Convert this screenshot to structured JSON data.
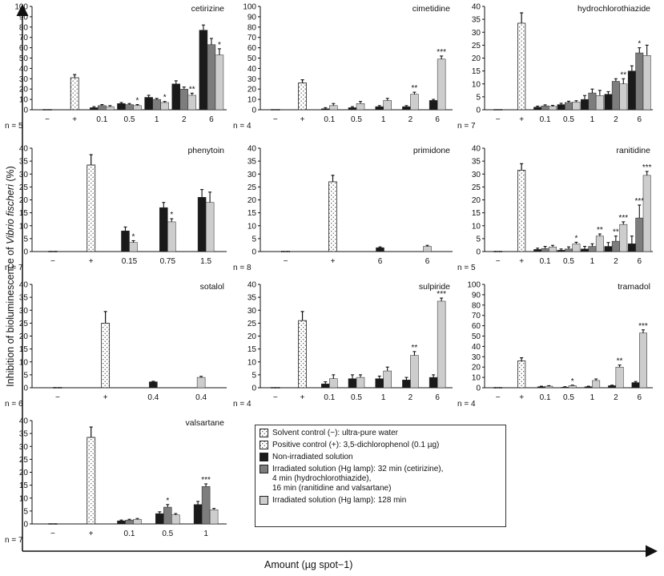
{
  "figure": {
    "y_axis_label_prefix": "Inhibition of bioluminescence of ",
    "y_axis_label_species": "Vibrio fischeri",
    "y_axis_label_suffix": " (%)",
    "x_axis_label": "Amount (µg spot−1)"
  },
  "legend": {
    "items": [
      {
        "key": "solvent",
        "label": "Solvent control (−): ultra-pure water"
      },
      {
        "key": "positive",
        "label": "Positive control (+): 3,5-dichlorophenol (0.1 µg)"
      },
      {
        "key": "non_irr",
        "label": "Non-irradiated solution"
      },
      {
        "key": "hg_short",
        "label": "Irradiated solution (Hg lamp): 32 min (cetirizine),\n4 min (hydrochlorothiazide),\n16 min (ranitidine and valsartane)"
      },
      {
        "key": "hg_128",
        "label": "Irradiated solution (Hg lamp): 128 min"
      }
    ]
  },
  "colors": {
    "non_irr": "#1a1a1a",
    "hg_short": "#7d7d7d",
    "hg_128": "#cdcdcd",
    "positive_fill": "#ffffff",
    "positive_dots": "#555555"
  },
  "chart_data": [
    {
      "type": "bar",
      "drug": "cetirizine",
      "n_label": "n = 5",
      "ylim": [
        0,
        100
      ],
      "yticks": [
        0,
        10,
        20,
        30,
        40,
        50,
        60,
        70,
        80,
        90,
        100
      ],
      "solvent": 0,
      "positive": 31,
      "positive_err": 3,
      "groups": [
        {
          "label": "0.1",
          "bars": [
            {
              "s": "non_irr",
              "v": 2,
              "e": 1
            },
            {
              "s": "hg_short",
              "v": 4,
              "e": 1
            },
            {
              "s": "hg_128",
              "v": 3,
              "e": 1
            }
          ]
        },
        {
          "label": "0.5",
          "bars": [
            {
              "s": "non_irr",
              "v": 6,
              "e": 1
            },
            {
              "s": "hg_short",
              "v": 5,
              "e": 1
            },
            {
              "s": "hg_128",
              "v": 4,
              "e": 1,
              "sig": "*"
            }
          ]
        },
        {
          "label": "1",
          "bars": [
            {
              "s": "non_irr",
              "v": 12,
              "e": 2
            },
            {
              "s": "hg_short",
              "v": 10,
              "e": 1
            },
            {
              "s": "hg_128",
              "v": 7,
              "e": 1,
              "sig": "*"
            }
          ]
        },
        {
          "label": "2",
          "bars": [
            {
              "s": "non_irr",
              "v": 25,
              "e": 3
            },
            {
              "s": "hg_short",
              "v": 20,
              "e": 2
            },
            {
              "s": "hg_128",
              "v": 14,
              "e": 2,
              "sig": "**"
            }
          ]
        },
        {
          "label": "6",
          "bars": [
            {
              "s": "non_irr",
              "v": 77,
              "e": 5
            },
            {
              "s": "hg_short",
              "v": 63,
              "e": 6
            },
            {
              "s": "hg_128",
              "v": 53,
              "e": 6,
              "sig": "*"
            }
          ]
        }
      ]
    },
    {
      "type": "bar",
      "drug": "cimetidine",
      "n_label": "n = 4",
      "ylim": [
        0,
        100
      ],
      "yticks": [
        0,
        10,
        20,
        30,
        40,
        50,
        60,
        70,
        80,
        90,
        100
      ],
      "solvent": 0,
      "positive": 26,
      "positive_err": 3,
      "groups": [
        {
          "label": "0.1",
          "bars": [
            {
              "s": "non_irr",
              "v": 1,
              "e": 1
            },
            {
              "s": "hg_128",
              "v": 4,
              "e": 2
            }
          ]
        },
        {
          "label": "0.5",
          "bars": [
            {
              "s": "non_irr",
              "v": 2,
              "e": 1
            },
            {
              "s": "hg_128",
              "v": 6,
              "e": 2
            }
          ]
        },
        {
          "label": "1",
          "bars": [
            {
              "s": "non_irr",
              "v": 3,
              "e": 1
            },
            {
              "s": "hg_128",
              "v": 9,
              "e": 2
            }
          ]
        },
        {
          "label": "2",
          "bars": [
            {
              "s": "non_irr",
              "v": 3,
              "e": 1
            },
            {
              "s": "hg_128",
              "v": 15,
              "e": 2,
              "sig": "**"
            }
          ]
        },
        {
          "label": "6",
          "bars": [
            {
              "s": "non_irr",
              "v": 9,
              "e": 1
            },
            {
              "s": "hg_128",
              "v": 49,
              "e": 3,
              "sig": "***"
            }
          ]
        }
      ]
    },
    {
      "type": "bar",
      "drug": "hydrochlorothiazide",
      "n_label": "n = 7",
      "ylim": [
        0,
        40
      ],
      "yticks": [
        0,
        5,
        10,
        15,
        20,
        25,
        30,
        35,
        40
      ],
      "solvent": 0,
      "positive": 33.5,
      "positive_err": 4,
      "groups": [
        {
          "label": "0.1",
          "bars": [
            {
              "s": "non_irr",
              "v": 1,
              "e": 0.4
            },
            {
              "s": "hg_short",
              "v": 1.5,
              "e": 0.4
            },
            {
              "s": "hg_128",
              "v": 1.3,
              "e": 0.4
            }
          ]
        },
        {
          "label": "0.5",
          "bars": [
            {
              "s": "non_irr",
              "v": 2,
              "e": 0.5
            },
            {
              "s": "hg_short",
              "v": 2.8,
              "e": 0.5
            },
            {
              "s": "hg_128",
              "v": 3,
              "e": 0.5
            }
          ]
        },
        {
          "label": "1",
          "bars": [
            {
              "s": "non_irr",
              "v": 4,
              "e": 1.5
            },
            {
              "s": "hg_short",
              "v": 6.5,
              "e": 1.5
            },
            {
              "s": "hg_128",
              "v": 5.5,
              "e": 2
            }
          ]
        },
        {
          "label": "2",
          "bars": [
            {
              "s": "non_irr",
              "v": 6,
              "e": 1
            },
            {
              "s": "hg_short",
              "v": 11,
              "e": 1
            },
            {
              "s": "hg_128",
              "v": 10,
              "e": 2,
              "sig": "**"
            }
          ]
        },
        {
          "label": "6",
          "bars": [
            {
              "s": "non_irr",
              "v": 15,
              "e": 2
            },
            {
              "s": "hg_short",
              "v": 22,
              "e": 2,
              "sig": "*"
            },
            {
              "s": "hg_128",
              "v": 21,
              "e": 4
            }
          ]
        }
      ]
    },
    {
      "type": "bar",
      "drug": "phenytoin",
      "n_label": "n = 7",
      "ylim": [
        0,
        40
      ],
      "yticks": [
        0,
        5,
        10,
        15,
        20,
        25,
        30,
        35,
        40
      ],
      "solvent": 0,
      "positive": 33.5,
      "positive_err": 4,
      "groups": [
        {
          "label": "0.15",
          "bars": [
            {
              "s": "non_irr",
              "v": 8,
              "e": 1.5
            },
            {
              "s": "hg_128",
              "v": 3.5,
              "e": 0.7,
              "sig": "*"
            }
          ]
        },
        {
          "label": "0.75",
          "bars": [
            {
              "s": "non_irr",
              "v": 17,
              "e": 2
            },
            {
              "s": "hg_128",
              "v": 11.5,
              "e": 1.2,
              "sig": "*"
            }
          ]
        },
        {
          "label": "1.5",
          "bars": [
            {
              "s": "non_irr",
              "v": 21,
              "e": 3
            },
            {
              "s": "hg_128",
              "v": 19,
              "e": 4
            }
          ]
        }
      ]
    },
    {
      "type": "bar",
      "drug": "primidone",
      "n_label": "n = 8",
      "ylim": [
        0,
        40
      ],
      "yticks": [
        0,
        5,
        10,
        15,
        20,
        25,
        30,
        35,
        40
      ],
      "solvent": 0,
      "positive": 27,
      "positive_err": 2.5,
      "groups": [
        {
          "label": "6",
          "bars": [
            {
              "s": "non_irr",
              "v": 1.5,
              "e": 0.3
            }
          ]
        },
        {
          "label": "6",
          "bars": [
            {
              "s": "hg_128",
              "v": 2,
              "e": 0.4
            }
          ]
        }
      ]
    },
    {
      "type": "bar",
      "drug": "ranitidine",
      "n_label": "n = 5",
      "ylim": [
        0,
        40
      ],
      "yticks": [
        0,
        5,
        10,
        15,
        20,
        25,
        30,
        35,
        40
      ],
      "solvent": 0,
      "positive": 31.5,
      "positive_err": 2.5,
      "groups": [
        {
          "label": "0.1",
          "bars": [
            {
              "s": "non_irr",
              "v": 0.8,
              "e": 0.5
            },
            {
              "s": "hg_short",
              "v": 1.2,
              "e": 0.8
            },
            {
              "s": "hg_128",
              "v": 1.8,
              "e": 0.6
            }
          ]
        },
        {
          "label": "0.5",
          "bars": [
            {
              "s": "non_irr",
              "v": 0.5,
              "e": 0.5
            },
            {
              "s": "hg_short",
              "v": 1,
              "e": 0.8
            },
            {
              "s": "hg_128",
              "v": 3,
              "e": 0.6,
              "sig": "*"
            }
          ]
        },
        {
          "label": "1",
          "bars": [
            {
              "s": "non_irr",
              "v": 1,
              "e": 1
            },
            {
              "s": "hg_short",
              "v": 2,
              "e": 1
            },
            {
              "s": "hg_128",
              "v": 6,
              "e": 0.8,
              "sig": "**"
            }
          ]
        },
        {
          "label": "2",
          "bars": [
            {
              "s": "non_irr",
              "v": 2,
              "e": 1.5
            },
            {
              "s": "hg_short",
              "v": 4,
              "e": 2,
              "sig": "**"
            },
            {
              "s": "hg_128",
              "v": 10.5,
              "e": 1,
              "sig": "***"
            }
          ]
        },
        {
          "label": "6",
          "bars": [
            {
              "s": "non_irr",
              "v": 3,
              "e": 3
            },
            {
              "s": "hg_short",
              "v": 13,
              "e": 5,
              "sig": "***"
            },
            {
              "s": "hg_128",
              "v": 29.5,
              "e": 1.5,
              "sig": "***"
            }
          ]
        }
      ]
    },
    {
      "type": "bar",
      "drug": "sotalol",
      "n_label": "n = 6",
      "ylim": [
        0,
        40
      ],
      "yticks": [
        0,
        5,
        10,
        15,
        20,
        25,
        30,
        35,
        40
      ],
      "solvent": 0,
      "positive": 25,
      "positive_err": 4.5,
      "groups": [
        {
          "label": "0.4",
          "bars": [
            {
              "s": "non_irr",
              "v": 2.3,
              "e": 0.2
            }
          ]
        },
        {
          "label": "0.4",
          "bars": [
            {
              "s": "hg_128",
              "v": 4,
              "e": 0.4
            }
          ]
        }
      ]
    },
    {
      "type": "bar",
      "drug": "sulpiride",
      "n_label": "n = 4",
      "ylim": [
        0,
        40
      ],
      "yticks": [
        0,
        5,
        10,
        15,
        20,
        25,
        30,
        35,
        40
      ],
      "solvent": 0,
      "positive": 26,
      "positive_err": 3.5,
      "groups": [
        {
          "label": "0.1",
          "bars": [
            {
              "s": "non_irr",
              "v": 1.5,
              "e": 0.8
            },
            {
              "s": "hg_128",
              "v": 3.5,
              "e": 1.5
            }
          ]
        },
        {
          "label": "0.5",
          "bars": [
            {
              "s": "non_irr",
              "v": 3.5,
              "e": 1.5
            },
            {
              "s": "hg_128",
              "v": 4,
              "e": 1
            }
          ]
        },
        {
          "label": "1",
          "bars": [
            {
              "s": "non_irr",
              "v": 3.5,
              "e": 1
            },
            {
              "s": "hg_128",
              "v": 6.5,
              "e": 1.5
            }
          ]
        },
        {
          "label": "2",
          "bars": [
            {
              "s": "non_irr",
              "v": 3,
              "e": 1
            },
            {
              "s": "hg_128",
              "v": 12.5,
              "e": 1.5,
              "sig": "**"
            }
          ]
        },
        {
          "label": "6",
          "bars": [
            {
              "s": "non_irr",
              "v": 4,
              "e": 1
            },
            {
              "s": "hg_128",
              "v": 33.5,
              "e": 1.2,
              "sig": "***"
            }
          ]
        }
      ]
    },
    {
      "type": "bar",
      "drug": "tramadol",
      "n_label": "n = 4",
      "ylim": [
        0,
        100
      ],
      "yticks": [
        0,
        10,
        20,
        30,
        40,
        50,
        60,
        70,
        80,
        90,
        100
      ],
      "solvent": 0,
      "positive": 26,
      "positive_err": 3,
      "groups": [
        {
          "label": "0.1",
          "bars": [
            {
              "s": "non_irr",
              "v": 1,
              "e": 0.5
            },
            {
              "s": "hg_128",
              "v": 1.5,
              "e": 0.5
            }
          ]
        },
        {
          "label": "0.5",
          "bars": [
            {
              "s": "non_irr",
              "v": 0.5,
              "e": 0.5
            },
            {
              "s": "hg_128",
              "v": 2,
              "e": 0.5,
              "sig": "*"
            }
          ]
        },
        {
          "label": "1",
          "bars": [
            {
              "s": "non_irr",
              "v": 1,
              "e": 0.5
            },
            {
              "s": "hg_128",
              "v": 7,
              "e": 1.5
            }
          ]
        },
        {
          "label": "2",
          "bars": [
            {
              "s": "non_irr",
              "v": 2,
              "e": 0.5
            },
            {
              "s": "hg_128",
              "v": 20,
              "e": 2,
              "sig": "**"
            }
          ]
        },
        {
          "label": "6",
          "bars": [
            {
              "s": "non_irr",
              "v": 5,
              "e": 1
            },
            {
              "s": "hg_128",
              "v": 53,
              "e": 3,
              "sig": "***"
            }
          ]
        }
      ]
    },
    {
      "type": "bar",
      "drug": "valsartane",
      "n_label": "n = 7",
      "ylim": [
        0,
        40
      ],
      "yticks": [
        0,
        5,
        10,
        15,
        20,
        25,
        30,
        35,
        40
      ],
      "solvent": 0,
      "positive": 33.5,
      "positive_err": 4,
      "groups": [
        {
          "label": "0.1",
          "bars": [
            {
              "s": "non_irr",
              "v": 1.2,
              "e": 0.3
            },
            {
              "s": "hg_short",
              "v": 1.5,
              "e": 0.3
            },
            {
              "s": "hg_128",
              "v": 1.8,
              "e": 0.3
            }
          ]
        },
        {
          "label": "0.5",
          "bars": [
            {
              "s": "non_irr",
              "v": 4,
              "e": 0.7
            },
            {
              "s": "hg_short",
              "v": 6.5,
              "e": 1,
              "sig": "*"
            },
            {
              "s": "hg_128",
              "v": 3.5,
              "e": 0.5
            }
          ]
        },
        {
          "label": "1",
          "bars": [
            {
              "s": "non_irr",
              "v": 7.5,
              "e": 1.2
            },
            {
              "s": "hg_short",
              "v": 14.5,
              "e": 1,
              "sig": "***"
            },
            {
              "s": "hg_128",
              "v": 5.5,
              "e": 0.5
            }
          ]
        }
      ]
    }
  ]
}
